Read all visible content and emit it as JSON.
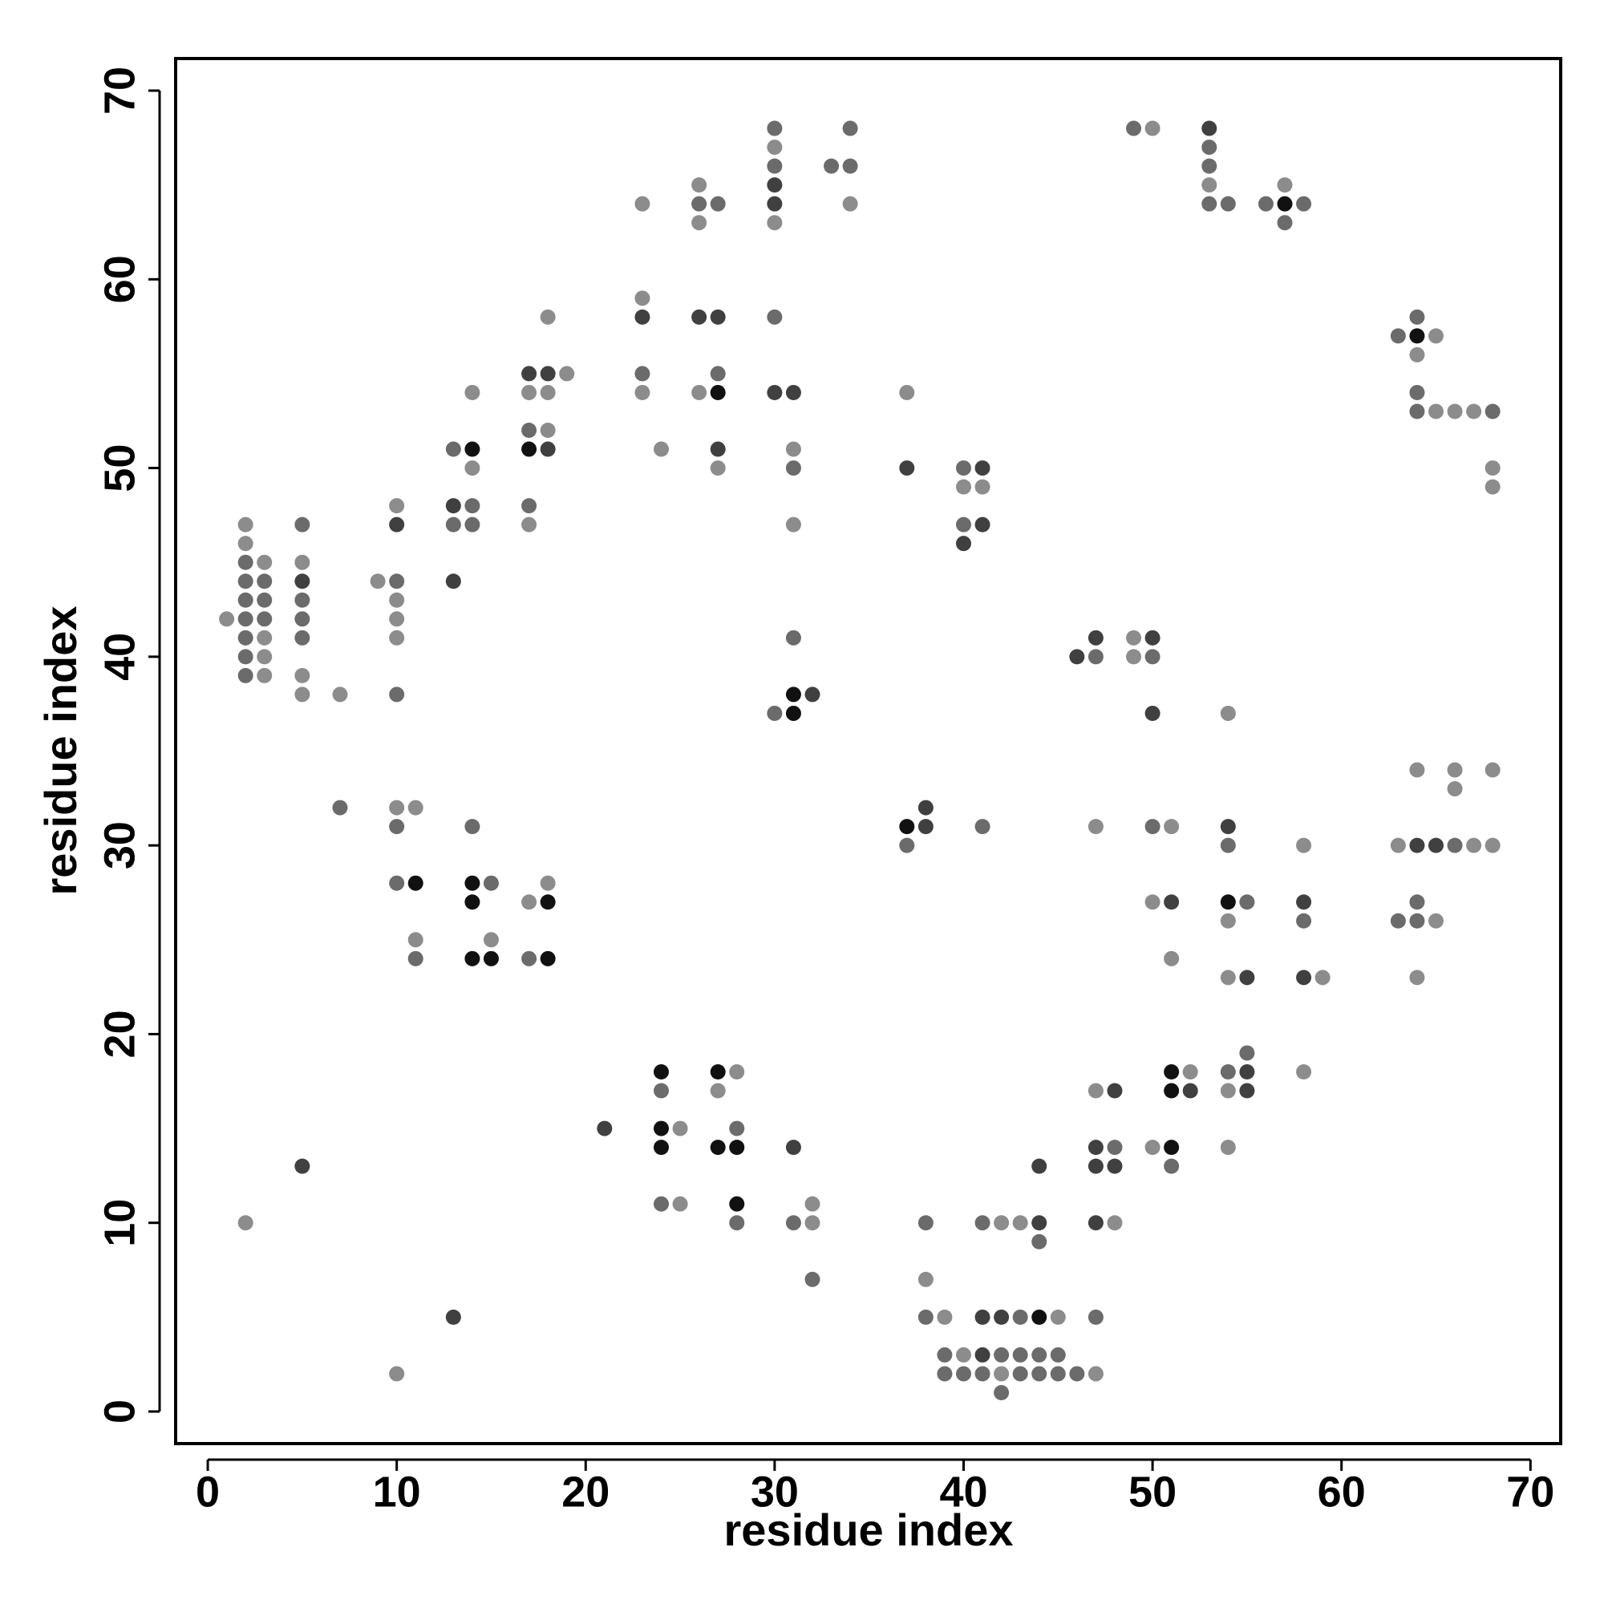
{
  "chart_data": {
    "type": "scatter",
    "x_label": "residue index",
    "y_label": "residue index",
    "xlim": [
      -1.7,
      71.6
    ],
    "ylim": [
      -1.7,
      71.7
    ],
    "xticks": [
      0,
      10,
      20,
      30,
      40,
      50,
      60,
      70
    ],
    "yticks": [
      0,
      10,
      20,
      30,
      40,
      50,
      60,
      70
    ],
    "series": [
      {
        "color": "#8c8c8c",
        "x": [
          1,
          2,
          2,
          2,
          3,
          3,
          3,
          3,
          5,
          5,
          5,
          7,
          9,
          10,
          10,
          10,
          10,
          10,
          10,
          11,
          11,
          14,
          14,
          15,
          17,
          17,
          17,
          18,
          18,
          18,
          18,
          19,
          23,
          23,
          23,
          24,
          25,
          25,
          26,
          26,
          26,
          27,
          27,
          28,
          30,
          30,
          31,
          31,
          32,
          32,
          34,
          37,
          38,
          39,
          40,
          40,
          41,
          42,
          42,
          43,
          45,
          47,
          47,
          47,
          48,
          49,
          49,
          50,
          50,
          50,
          51,
          51,
          52,
          53,
          54,
          54,
          54,
          54,
          54,
          57,
          58,
          58,
          59,
          63,
          64,
          64,
          64,
          65,
          65,
          65,
          66,
          66,
          66,
          67,
          67,
          68,
          68,
          68,
          68
        ],
        "values": [
          42,
          47,
          46,
          10,
          45,
          41,
          40,
          39,
          45,
          39,
          38,
          38,
          44,
          48,
          43,
          42,
          41,
          32,
          2,
          32,
          25,
          54,
          50,
          25,
          54,
          47,
          27,
          58,
          54,
          52,
          28,
          55,
          64,
          59,
          54,
          51,
          15,
          11,
          65,
          63,
          54,
          50,
          17,
          18,
          67,
          63,
          51,
          47,
          11,
          10,
          64,
          54,
          7,
          5,
          49,
          3,
          49,
          10,
          2,
          10,
          5,
          31,
          17,
          2,
          10,
          41,
          40,
          68,
          27,
          14,
          31,
          24,
          18,
          65,
          37,
          26,
          23,
          17,
          14,
          65,
          30,
          18,
          23,
          30,
          56,
          34,
          23,
          57,
          53,
          26,
          53,
          34,
          33,
          53,
          30,
          50,
          49,
          34,
          30
        ]
      },
      {
        "color": "#6b6b6b",
        "x": [
          2,
          2,
          2,
          2,
          2,
          2,
          2,
          3,
          3,
          3,
          5,
          5,
          5,
          5,
          7,
          10,
          10,
          10,
          10,
          11,
          13,
          13,
          14,
          14,
          14,
          15,
          17,
          17,
          17,
          23,
          24,
          24,
          26,
          27,
          27,
          28,
          28,
          30,
          30,
          30,
          30,
          31,
          31,
          31,
          32,
          33,
          34,
          34,
          37,
          38,
          38,
          39,
          39,
          40,
          40,
          40,
          41,
          41,
          41,
          42,
          42,
          43,
          43,
          43,
          44,
          44,
          44,
          45,
          45,
          46,
          47,
          47,
          48,
          49,
          50,
          50,
          51,
          53,
          53,
          53,
          54,
          54,
          54,
          55,
          55,
          56,
          57,
          58,
          58,
          63,
          63,
          64,
          64,
          64,
          64,
          64,
          66,
          68
        ],
        "values": [
          45,
          44,
          43,
          42,
          41,
          40,
          39,
          44,
          43,
          42,
          47,
          43,
          42,
          41,
          32,
          44,
          38,
          31,
          28,
          24,
          51,
          47,
          48,
          47,
          31,
          28,
          52,
          48,
          24,
          55,
          17,
          11,
          64,
          64,
          55,
          15,
          10,
          68,
          66,
          58,
          37,
          50,
          41,
          10,
          7,
          66,
          68,
          66,
          30,
          10,
          5,
          3,
          2,
          50,
          47,
          2,
          31,
          10,
          2,
          3,
          1,
          5,
          3,
          2,
          9,
          3,
          2,
          3,
          2,
          2,
          40,
          5,
          14,
          68,
          40,
          31,
          13,
          67,
          66,
          64,
          64,
          30,
          18,
          27,
          19,
          64,
          63,
          64,
          26,
          57,
          26,
          58,
          54,
          53,
          27,
          26,
          30,
          53
        ]
      },
      {
        "color": "#404040",
        "x": [
          5,
          5,
          10,
          13,
          13,
          13,
          17,
          18,
          18,
          21,
          23,
          26,
          27,
          27,
          30,
          30,
          30,
          31,
          31,
          32,
          37,
          38,
          38,
          40,
          41,
          41,
          41,
          41,
          42,
          44,
          44,
          46,
          47,
          47,
          47,
          47,
          48,
          48,
          50,
          50,
          51,
          52,
          53,
          54,
          55,
          55,
          55,
          58,
          58,
          64,
          65
        ],
        "values": [
          44,
          13,
          47,
          48,
          44,
          5,
          55,
          55,
          51,
          15,
          58,
          58,
          58,
          51,
          65,
          64,
          54,
          54,
          14,
          38,
          50,
          32,
          31,
          46,
          50,
          47,
          5,
          3,
          5,
          13,
          10,
          40,
          41,
          14,
          13,
          10,
          17,
          13,
          41,
          37,
          27,
          17,
          68,
          31,
          23,
          18,
          17,
          27,
          23,
          30,
          30
        ]
      },
      {
        "color": "#111111",
        "x": [
          11,
          14,
          14,
          14,
          14,
          15,
          17,
          18,
          18,
          24,
          24,
          24,
          27,
          27,
          27,
          28,
          28,
          31,
          31,
          37,
          44,
          51,
          51,
          51,
          54,
          57,
          64
        ],
        "values": [
          28,
          51,
          28,
          27,
          24,
          24,
          51,
          27,
          24,
          18,
          15,
          14,
          54,
          18,
          14,
          14,
          11,
          38,
          37,
          31,
          5,
          18,
          17,
          14,
          27,
          64,
          57
        ]
      }
    ]
  }
}
